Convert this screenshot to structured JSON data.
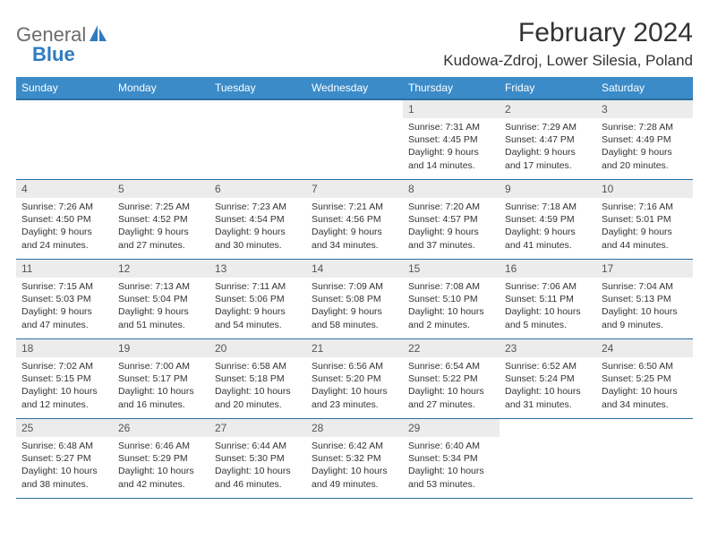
{
  "logo": {
    "word1": "General",
    "word2": "Blue"
  },
  "title": "February 2024",
  "location": "Kudowa-Zdroj, Lower Silesia, Poland",
  "colors": {
    "header_bg": "#3b8bc8",
    "header_border": "#2a6fa0",
    "daynum_bg": "#ececec",
    "text": "#333333",
    "logo_gray": "#6b6b6b",
    "logo_blue": "#2f7bbf"
  },
  "dayNames": [
    "Sunday",
    "Monday",
    "Tuesday",
    "Wednesday",
    "Thursday",
    "Friday",
    "Saturday"
  ],
  "weeks": [
    [
      {
        "n": "",
        "sr": "",
        "ss": "",
        "dl1": "",
        "dl2": ""
      },
      {
        "n": "",
        "sr": "",
        "ss": "",
        "dl1": "",
        "dl2": ""
      },
      {
        "n": "",
        "sr": "",
        "ss": "",
        "dl1": "",
        "dl2": ""
      },
      {
        "n": "",
        "sr": "",
        "ss": "",
        "dl1": "",
        "dl2": ""
      },
      {
        "n": "1",
        "sr": "Sunrise: 7:31 AM",
        "ss": "Sunset: 4:45 PM",
        "dl1": "Daylight: 9 hours",
        "dl2": "and 14 minutes."
      },
      {
        "n": "2",
        "sr": "Sunrise: 7:29 AM",
        "ss": "Sunset: 4:47 PM",
        "dl1": "Daylight: 9 hours",
        "dl2": "and 17 minutes."
      },
      {
        "n": "3",
        "sr": "Sunrise: 7:28 AM",
        "ss": "Sunset: 4:49 PM",
        "dl1": "Daylight: 9 hours",
        "dl2": "and 20 minutes."
      }
    ],
    [
      {
        "n": "4",
        "sr": "Sunrise: 7:26 AM",
        "ss": "Sunset: 4:50 PM",
        "dl1": "Daylight: 9 hours",
        "dl2": "and 24 minutes."
      },
      {
        "n": "5",
        "sr": "Sunrise: 7:25 AM",
        "ss": "Sunset: 4:52 PM",
        "dl1": "Daylight: 9 hours",
        "dl2": "and 27 minutes."
      },
      {
        "n": "6",
        "sr": "Sunrise: 7:23 AM",
        "ss": "Sunset: 4:54 PM",
        "dl1": "Daylight: 9 hours",
        "dl2": "and 30 minutes."
      },
      {
        "n": "7",
        "sr": "Sunrise: 7:21 AM",
        "ss": "Sunset: 4:56 PM",
        "dl1": "Daylight: 9 hours",
        "dl2": "and 34 minutes."
      },
      {
        "n": "8",
        "sr": "Sunrise: 7:20 AM",
        "ss": "Sunset: 4:57 PM",
        "dl1": "Daylight: 9 hours",
        "dl2": "and 37 minutes."
      },
      {
        "n": "9",
        "sr": "Sunrise: 7:18 AM",
        "ss": "Sunset: 4:59 PM",
        "dl1": "Daylight: 9 hours",
        "dl2": "and 41 minutes."
      },
      {
        "n": "10",
        "sr": "Sunrise: 7:16 AM",
        "ss": "Sunset: 5:01 PM",
        "dl1": "Daylight: 9 hours",
        "dl2": "and 44 minutes."
      }
    ],
    [
      {
        "n": "11",
        "sr": "Sunrise: 7:15 AM",
        "ss": "Sunset: 5:03 PM",
        "dl1": "Daylight: 9 hours",
        "dl2": "and 47 minutes."
      },
      {
        "n": "12",
        "sr": "Sunrise: 7:13 AM",
        "ss": "Sunset: 5:04 PM",
        "dl1": "Daylight: 9 hours",
        "dl2": "and 51 minutes."
      },
      {
        "n": "13",
        "sr": "Sunrise: 7:11 AM",
        "ss": "Sunset: 5:06 PM",
        "dl1": "Daylight: 9 hours",
        "dl2": "and 54 minutes."
      },
      {
        "n": "14",
        "sr": "Sunrise: 7:09 AM",
        "ss": "Sunset: 5:08 PM",
        "dl1": "Daylight: 9 hours",
        "dl2": "and 58 minutes."
      },
      {
        "n": "15",
        "sr": "Sunrise: 7:08 AM",
        "ss": "Sunset: 5:10 PM",
        "dl1": "Daylight: 10 hours",
        "dl2": "and 2 minutes."
      },
      {
        "n": "16",
        "sr": "Sunrise: 7:06 AM",
        "ss": "Sunset: 5:11 PM",
        "dl1": "Daylight: 10 hours",
        "dl2": "and 5 minutes."
      },
      {
        "n": "17",
        "sr": "Sunrise: 7:04 AM",
        "ss": "Sunset: 5:13 PM",
        "dl1": "Daylight: 10 hours",
        "dl2": "and 9 minutes."
      }
    ],
    [
      {
        "n": "18",
        "sr": "Sunrise: 7:02 AM",
        "ss": "Sunset: 5:15 PM",
        "dl1": "Daylight: 10 hours",
        "dl2": "and 12 minutes."
      },
      {
        "n": "19",
        "sr": "Sunrise: 7:00 AM",
        "ss": "Sunset: 5:17 PM",
        "dl1": "Daylight: 10 hours",
        "dl2": "and 16 minutes."
      },
      {
        "n": "20",
        "sr": "Sunrise: 6:58 AM",
        "ss": "Sunset: 5:18 PM",
        "dl1": "Daylight: 10 hours",
        "dl2": "and 20 minutes."
      },
      {
        "n": "21",
        "sr": "Sunrise: 6:56 AM",
        "ss": "Sunset: 5:20 PM",
        "dl1": "Daylight: 10 hours",
        "dl2": "and 23 minutes."
      },
      {
        "n": "22",
        "sr": "Sunrise: 6:54 AM",
        "ss": "Sunset: 5:22 PM",
        "dl1": "Daylight: 10 hours",
        "dl2": "and 27 minutes."
      },
      {
        "n": "23",
        "sr": "Sunrise: 6:52 AM",
        "ss": "Sunset: 5:24 PM",
        "dl1": "Daylight: 10 hours",
        "dl2": "and 31 minutes."
      },
      {
        "n": "24",
        "sr": "Sunrise: 6:50 AM",
        "ss": "Sunset: 5:25 PM",
        "dl1": "Daylight: 10 hours",
        "dl2": "and 34 minutes."
      }
    ],
    [
      {
        "n": "25",
        "sr": "Sunrise: 6:48 AM",
        "ss": "Sunset: 5:27 PM",
        "dl1": "Daylight: 10 hours",
        "dl2": "and 38 minutes."
      },
      {
        "n": "26",
        "sr": "Sunrise: 6:46 AM",
        "ss": "Sunset: 5:29 PM",
        "dl1": "Daylight: 10 hours",
        "dl2": "and 42 minutes."
      },
      {
        "n": "27",
        "sr": "Sunrise: 6:44 AM",
        "ss": "Sunset: 5:30 PM",
        "dl1": "Daylight: 10 hours",
        "dl2": "and 46 minutes."
      },
      {
        "n": "28",
        "sr": "Sunrise: 6:42 AM",
        "ss": "Sunset: 5:32 PM",
        "dl1": "Daylight: 10 hours",
        "dl2": "and 49 minutes."
      },
      {
        "n": "29",
        "sr": "Sunrise: 6:40 AM",
        "ss": "Sunset: 5:34 PM",
        "dl1": "Daylight: 10 hours",
        "dl2": "and 53 minutes."
      },
      {
        "n": "",
        "sr": "",
        "ss": "",
        "dl1": "",
        "dl2": ""
      },
      {
        "n": "",
        "sr": "",
        "ss": "",
        "dl1": "",
        "dl2": ""
      }
    ]
  ]
}
